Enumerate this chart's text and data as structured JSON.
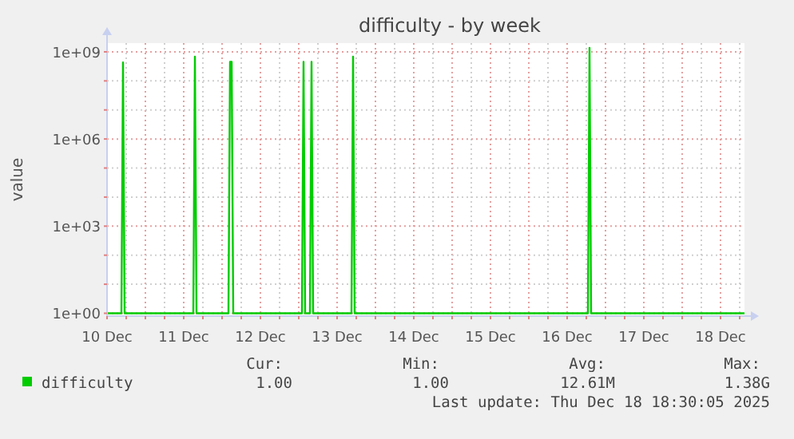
{
  "chart_data": {
    "type": "line",
    "title": "difficulty - by week",
    "ylabel": "value",
    "log": "y",
    "grid": true,
    "legend": "bottom",
    "xlim": [
      "2025-12-10T00:00",
      "2025-12-18T07:30"
    ],
    "xticks": [
      {
        "value": "2025-12-10T00:00",
        "label": "10 Dec"
      },
      {
        "value": "2025-12-10T06:00",
        "label": null
      },
      {
        "value": "2025-12-10T12:00",
        "label": null
      },
      {
        "value": "2025-12-10T18:00",
        "label": null
      },
      {
        "value": "2025-12-11T00:00",
        "label": "11 Dec"
      },
      {
        "value": "2025-12-11T06:00",
        "label": null
      },
      {
        "value": "2025-12-11T12:00",
        "label": null
      },
      {
        "value": "2025-12-11T18:00",
        "label": null
      },
      {
        "value": "2025-12-12T00:00",
        "label": "12 Dec"
      },
      {
        "value": "2025-12-12T06:00",
        "label": null
      },
      {
        "value": "2025-12-12T12:00",
        "label": null
      },
      {
        "value": "2025-12-12T18:00",
        "label": null
      },
      {
        "value": "2025-12-13T00:00",
        "label": "13 Dec"
      },
      {
        "value": "2025-12-13T06:00",
        "label": null
      },
      {
        "value": "2025-12-13T12:00",
        "label": null
      },
      {
        "value": "2025-12-13T18:00",
        "label": null
      },
      {
        "value": "2025-12-14T00:00",
        "label": "14 Dec"
      },
      {
        "value": "2025-12-14T06:00",
        "label": null
      },
      {
        "value": "2025-12-14T12:00",
        "label": null
      },
      {
        "value": "2025-12-14T18:00",
        "label": null
      },
      {
        "value": "2025-12-15T00:00",
        "label": "15 Dec"
      },
      {
        "value": "2025-12-15T06:00",
        "label": null
      },
      {
        "value": "2025-12-15T12:00",
        "label": null
      },
      {
        "value": "2025-12-15T18:00",
        "label": null
      },
      {
        "value": "2025-12-16T00:00",
        "label": "16 Dec"
      },
      {
        "value": "2025-12-16T06:00",
        "label": null
      },
      {
        "value": "2025-12-16T12:00",
        "label": null
      },
      {
        "value": "2025-12-16T18:00",
        "label": null
      },
      {
        "value": "2025-12-17T00:00",
        "label": "17 Dec"
      },
      {
        "value": "2025-12-17T06:00",
        "label": null
      },
      {
        "value": "2025-12-17T12:00",
        "label": null
      },
      {
        "value": "2025-12-17T18:00",
        "label": null
      },
      {
        "value": "2025-12-18T00:00",
        "label": "18 Dec"
      },
      {
        "value": "2025-12-18T06:00",
        "label": null
      }
    ],
    "ylim": [
      0.8,
      2000000000
    ],
    "yticks": [
      {
        "value": 1,
        "label": "1e+00"
      },
      {
        "value": 10,
        "label": null
      },
      {
        "value": 100,
        "label": null
      },
      {
        "value": 1000,
        "label": "1e+03"
      },
      {
        "value": 10000,
        "label": null
      },
      {
        "value": 100000,
        "label": null
      },
      {
        "value": 1000000,
        "label": "1e+06"
      },
      {
        "value": 10000000,
        "label": null
      },
      {
        "value": 100000000,
        "label": null
      },
      {
        "value": 1000000000,
        "label": "1e+09"
      }
    ],
    "series": [
      {
        "name": "difficulty",
        "color": "#00cc00",
        "x": [
          "2025-12-10T00:00",
          "2025-12-10T04:30",
          "2025-12-10T05:00",
          "2025-12-10T05:30",
          "2025-12-11T03:00",
          "2025-12-11T03:30",
          "2025-12-11T04:00",
          "2025-12-11T14:00",
          "2025-12-11T14:30",
          "2025-12-11T15:00",
          "2025-12-11T15:30",
          "2025-12-12T13:00",
          "2025-12-12T13:30",
          "2025-12-12T14:00",
          "2025-12-12T15:30",
          "2025-12-12T16:00",
          "2025-12-12T16:30",
          "2025-12-13T04:30",
          "2025-12-13T05:00",
          "2025-12-13T05:30",
          "2025-12-16T06:30",
          "2025-12-16T07:00",
          "2025-12-16T07:30",
          "2025-12-18T07:30"
        ],
        "values": [
          1,
          1,
          430000000,
          1,
          1,
          680000000,
          1,
          1,
          450000000,
          450000000,
          1,
          1,
          450000000,
          1,
          1,
          450000000,
          1,
          1,
          680000000,
          1,
          1,
          1380000000,
          1,
          1
        ]
      }
    ],
    "annotations": [
      "Cur:",
      "1.00",
      "Min:",
      "1.00",
      "Avg:",
      "12.61M",
      "Max:",
      "1.38G",
      "Last update: Thu Dec 18 18:30:05 2025"
    ]
  }
}
